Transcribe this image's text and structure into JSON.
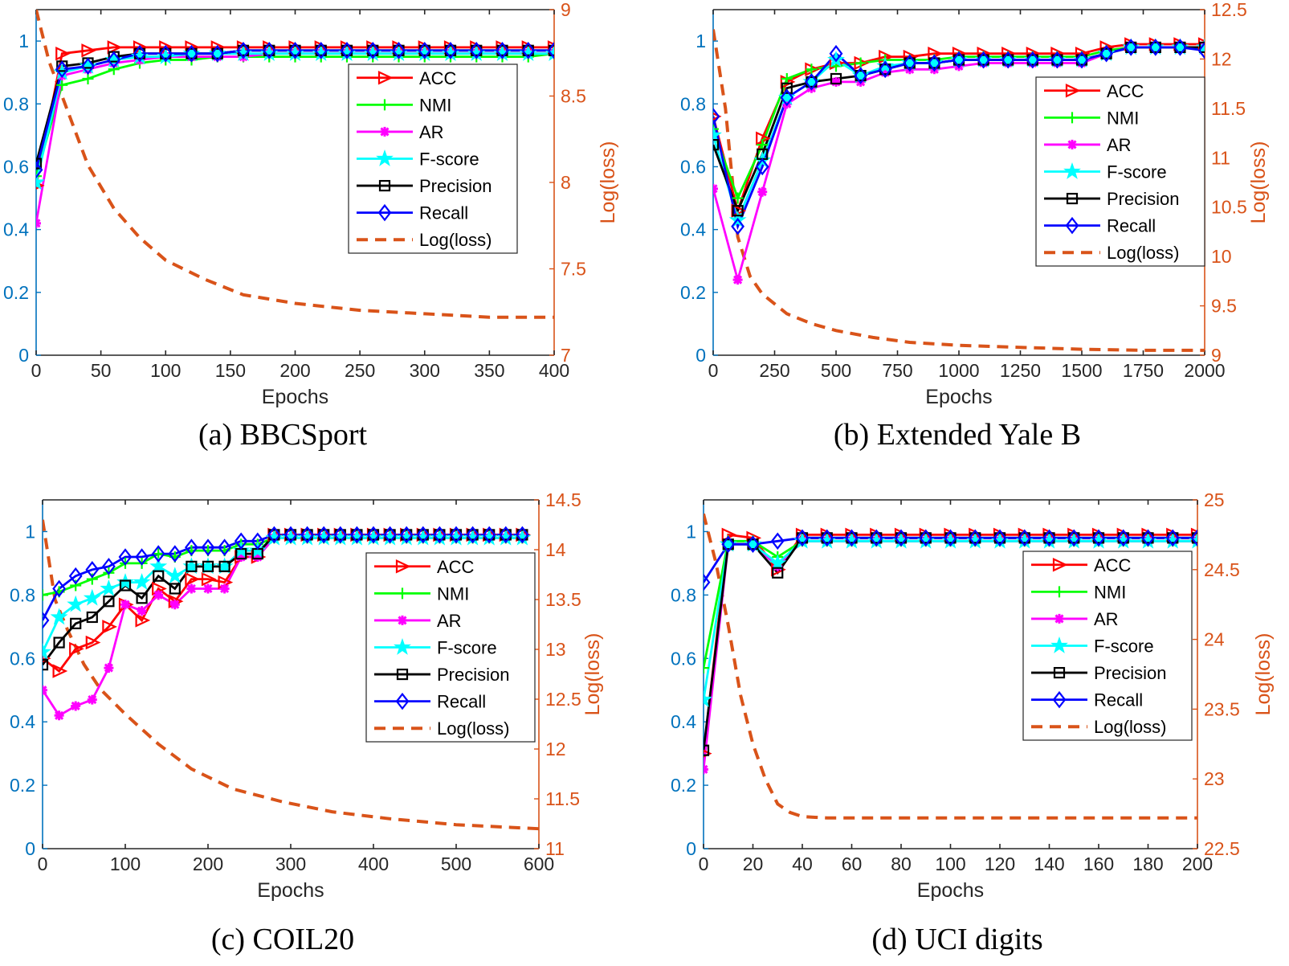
{
  "legend_labels": [
    "ACC",
    "NMI",
    "AR",
    "F-score",
    "Precision",
    "Recall",
    "Log(loss)"
  ],
  "colors": {
    "ACC": "#FF0000",
    "NMI": "#00FF00",
    "AR": "#FF00FF",
    "F-score": "#00FFFF",
    "Precision": "#000000",
    "Recall": "#0000FF",
    "loss": "#D95319",
    "left_axis": "#0072BD"
  },
  "chart_data": [
    {
      "type": "line",
      "caption": "(a) BBCSport",
      "xlabel": "Epochs",
      "ylabel_right": "Log(loss)",
      "xlim": [
        0,
        400
      ],
      "x_ticks": [
        "0",
        "50",
        "100",
        "150",
        "200",
        "250",
        "300",
        "350",
        "400"
      ],
      "ylim_left": [
        0,
        1.1
      ],
      "y_ticks_left": [
        "0",
        "0.2",
        "0.4",
        "0.6",
        "0.8",
        "1"
      ],
      "ylim_right": [
        7,
        9
      ],
      "y_ticks_right": [
        "7",
        "7.5",
        "8",
        "8.5",
        "9"
      ],
      "x": [
        0,
        20,
        40,
        60,
        80,
        100,
        120,
        140,
        160,
        180,
        200,
        220,
        240,
        260,
        280,
        300,
        320,
        340,
        360,
        380,
        400
      ],
      "series": [
        {
          "name": "ACC",
          "values": [
            0.54,
            0.96,
            0.97,
            0.98,
            0.98,
            0.98,
            0.98,
            0.98,
            0.98,
            0.98,
            0.98,
            0.98,
            0.98,
            0.98,
            0.98,
            0.98,
            0.98,
            0.98,
            0.98,
            0.98,
            0.98
          ]
        },
        {
          "name": "NMI",
          "values": [
            0.57,
            0.86,
            0.88,
            0.91,
            0.93,
            0.94,
            0.94,
            0.95,
            0.95,
            0.95,
            0.95,
            0.95,
            0.95,
            0.95,
            0.95,
            0.95,
            0.95,
            0.95,
            0.95,
            0.95,
            0.96
          ]
        },
        {
          "name": "AR",
          "values": [
            0.42,
            0.89,
            0.91,
            0.93,
            0.94,
            0.95,
            0.95,
            0.95,
            0.95,
            0.96,
            0.96,
            0.96,
            0.96,
            0.96,
            0.96,
            0.96,
            0.96,
            0.96,
            0.96,
            0.96,
            0.96
          ]
        },
        {
          "name": "F-score",
          "values": [
            0.55,
            0.9,
            0.92,
            0.94,
            0.95,
            0.95,
            0.96,
            0.96,
            0.96,
            0.96,
            0.96,
            0.96,
            0.96,
            0.96,
            0.96,
            0.96,
            0.96,
            0.96,
            0.96,
            0.96,
            0.96
          ]
        },
        {
          "name": "Precision",
          "values": [
            0.61,
            0.92,
            0.93,
            0.95,
            0.96,
            0.96,
            0.96,
            0.96,
            0.97,
            0.97,
            0.97,
            0.97,
            0.97,
            0.97,
            0.97,
            0.97,
            0.97,
            0.97,
            0.97,
            0.97,
            0.97
          ]
        },
        {
          "name": "Recall",
          "values": [
            0.59,
            0.91,
            0.92,
            0.94,
            0.96,
            0.96,
            0.96,
            0.96,
            0.97,
            0.97,
            0.97,
            0.97,
            0.97,
            0.97,
            0.97,
            0.97,
            0.97,
            0.97,
            0.97,
            0.97,
            0.97
          ]
        }
      ],
      "loss": {
        "x": [
          0,
          10,
          20,
          40,
          60,
          80,
          100,
          130,
          160,
          200,
          250,
          300,
          350,
          400
        ],
        "values": [
          9.0,
          8.7,
          8.5,
          8.1,
          7.85,
          7.68,
          7.55,
          7.44,
          7.35,
          7.3,
          7.26,
          7.24,
          7.22,
          7.22
        ]
      },
      "legend_location": "upper-right"
    },
    {
      "type": "line",
      "caption": "(b) Extended Yale B",
      "xlabel": "Epochs",
      "ylabel_right": "Log(loss)",
      "xlim": [
        0,
        2000
      ],
      "x_ticks": [
        "0",
        "250",
        "500",
        "750",
        "1000",
        "1250",
        "1500",
        "1750",
        "2000"
      ],
      "ylim_left": [
        0,
        1.1
      ],
      "y_ticks_left": [
        "0",
        "0.2",
        "0.4",
        "0.6",
        "0.8",
        "1"
      ],
      "ylim_right": [
        9,
        12.5
      ],
      "y_ticks_right": [
        "9",
        "9.5",
        "10",
        "10.5",
        "11",
        "11.5",
        "12",
        "12.5"
      ],
      "x": [
        0,
        100,
        200,
        300,
        400,
        500,
        600,
        700,
        800,
        900,
        1000,
        1100,
        1200,
        1300,
        1400,
        1500,
        1600,
        1700,
        1800,
        1900,
        2000
      ],
      "series": [
        {
          "name": "ACC",
          "values": [
            0.76,
            0.46,
            0.69,
            0.87,
            0.91,
            0.93,
            0.93,
            0.95,
            0.95,
            0.96,
            0.96,
            0.96,
            0.96,
            0.96,
            0.96,
            0.96,
            0.98,
            0.99,
            0.99,
            0.99,
            0.99
          ]
        },
        {
          "name": "NMI",
          "values": [
            0.72,
            0.5,
            0.67,
            0.88,
            0.91,
            0.92,
            0.93,
            0.94,
            0.94,
            0.94,
            0.95,
            0.95,
            0.95,
            0.95,
            0.95,
            0.95,
            0.97,
            0.98,
            0.98,
            0.98,
            0.98
          ]
        },
        {
          "name": "AR",
          "values": [
            0.53,
            0.24,
            0.52,
            0.8,
            0.85,
            0.87,
            0.87,
            0.9,
            0.91,
            0.91,
            0.92,
            0.93,
            0.93,
            0.93,
            0.93,
            0.93,
            0.96,
            0.98,
            0.98,
            0.98,
            0.98
          ]
        },
        {
          "name": "F-score",
          "values": [
            0.7,
            0.43,
            0.62,
            0.82,
            0.87,
            0.94,
            0.89,
            0.92,
            0.93,
            0.93,
            0.94,
            0.94,
            0.94,
            0.94,
            0.94,
            0.94,
            0.96,
            0.98,
            0.98,
            0.98,
            0.98
          ]
        },
        {
          "name": "Precision",
          "values": [
            0.67,
            0.46,
            0.64,
            0.85,
            0.87,
            0.88,
            0.89,
            0.91,
            0.93,
            0.93,
            0.94,
            0.94,
            0.94,
            0.94,
            0.94,
            0.94,
            0.96,
            0.98,
            0.98,
            0.98,
            0.98
          ]
        },
        {
          "name": "Recall",
          "values": [
            0.76,
            0.41,
            0.6,
            0.82,
            0.87,
            0.96,
            0.89,
            0.91,
            0.93,
            0.93,
            0.94,
            0.94,
            0.94,
            0.94,
            0.94,
            0.94,
            0.96,
            0.98,
            0.98,
            0.98,
            0.97
          ]
        }
      ],
      "loss": {
        "x": [
          0,
          50,
          100,
          150,
          200,
          300,
          400,
          500,
          650,
          800,
          1000,
          1250,
          1500,
          1750,
          2000
        ],
        "values": [
          12.3,
          11.5,
          10.2,
          9.8,
          9.62,
          9.42,
          9.32,
          9.25,
          9.18,
          9.13,
          9.1,
          9.08,
          9.06,
          9.05,
          9.05
        ]
      },
      "legend_location": "upper-right"
    },
    {
      "type": "line",
      "caption": "(c) COIL20",
      "xlabel": "Epochs",
      "ylabel_right": "Log(loss)",
      "xlim": [
        0,
        600
      ],
      "x_ticks": [
        "0",
        "100",
        "200",
        "300",
        "400",
        "500",
        "600"
      ],
      "ylim_left": [
        0,
        1.1
      ],
      "y_ticks_left": [
        "0",
        "0.2",
        "0.4",
        "0.6",
        "0.8",
        "1"
      ],
      "ylim_right": [
        11,
        14.5
      ],
      "y_ticks_right": [
        "11",
        "11.5",
        "12",
        "12.5",
        "13",
        "13.5",
        "14",
        "14.5"
      ],
      "x": [
        0,
        20,
        40,
        60,
        80,
        100,
        120,
        140,
        160,
        180,
        200,
        220,
        240,
        260,
        280,
        300,
        320,
        340,
        360,
        380,
        400,
        420,
        440,
        460,
        480,
        500,
        520,
        540,
        560,
        580
      ],
      "series": [
        {
          "name": "ACC",
          "values": [
            0.6,
            0.56,
            0.63,
            0.65,
            0.7,
            0.77,
            0.72,
            0.82,
            0.78,
            0.85,
            0.85,
            0.84,
            0.92,
            0.92,
            0.99,
            0.99,
            0.99,
            0.99,
            0.99,
            0.99,
            0.99,
            0.99,
            0.99,
            0.99,
            0.99,
            0.99,
            0.99,
            0.99,
            0.99,
            0.99
          ]
        },
        {
          "name": "NMI",
          "values": [
            0.8,
            0.81,
            0.83,
            0.85,
            0.87,
            0.9,
            0.9,
            0.93,
            0.92,
            0.94,
            0.94,
            0.94,
            0.96,
            0.96,
            0.98,
            0.98,
            0.98,
            0.98,
            0.98,
            0.98,
            0.98,
            0.98,
            0.98,
            0.98,
            0.98,
            0.98,
            0.98,
            0.98,
            0.98,
            0.98
          ]
        },
        {
          "name": "AR",
          "values": [
            0.5,
            0.42,
            0.45,
            0.47,
            0.57,
            0.77,
            0.75,
            0.8,
            0.77,
            0.82,
            0.82,
            0.82,
            0.92,
            0.92,
            0.98,
            0.98,
            0.98,
            0.98,
            0.98,
            0.98,
            0.98,
            0.98,
            0.98,
            0.98,
            0.98,
            0.98,
            0.98,
            0.98,
            0.98,
            0.98
          ]
        },
        {
          "name": "F-score",
          "values": [
            0.62,
            0.73,
            0.77,
            0.79,
            0.82,
            0.84,
            0.84,
            0.89,
            0.86,
            0.89,
            0.89,
            0.89,
            0.94,
            0.94,
            0.98,
            0.98,
            0.98,
            0.98,
            0.98,
            0.98,
            0.98,
            0.98,
            0.98,
            0.98,
            0.98,
            0.98,
            0.98,
            0.98,
            0.98,
            0.98
          ]
        },
        {
          "name": "Precision",
          "values": [
            0.58,
            0.65,
            0.71,
            0.73,
            0.78,
            0.83,
            0.79,
            0.86,
            0.82,
            0.89,
            0.89,
            0.89,
            0.93,
            0.93,
            0.99,
            0.99,
            0.99,
            0.99,
            0.99,
            0.99,
            0.99,
            0.99,
            0.99,
            0.99,
            0.99,
            0.99,
            0.99,
            0.99,
            0.99,
            0.99
          ]
        },
        {
          "name": "Recall",
          "values": [
            0.72,
            0.82,
            0.86,
            0.88,
            0.89,
            0.92,
            0.92,
            0.93,
            0.93,
            0.95,
            0.95,
            0.95,
            0.97,
            0.97,
            0.99,
            0.99,
            0.99,
            0.99,
            0.99,
            0.99,
            0.99,
            0.99,
            0.99,
            0.99,
            0.99,
            0.99,
            0.99,
            0.99,
            0.99,
            0.99
          ]
        }
      ],
      "loss": {
        "x": [
          0,
          15,
          30,
          50,
          70,
          100,
          140,
          180,
          230,
          290,
          350,
          420,
          500,
          600
        ],
        "values": [
          14.3,
          13.5,
          13.2,
          12.85,
          12.6,
          12.35,
          12.05,
          11.8,
          11.6,
          11.47,
          11.37,
          11.3,
          11.24,
          11.2
        ]
      },
      "legend_location": "upper-right"
    },
    {
      "type": "line",
      "caption": "(d) UCI digits",
      "xlabel": "Epochs",
      "ylabel_right": "Log(loss)",
      "xlim": [
        0,
        200
      ],
      "x_ticks": [
        "0",
        "20",
        "40",
        "60",
        "80",
        "100",
        "120",
        "140",
        "160",
        "180",
        "200"
      ],
      "ylim_left": [
        0,
        1.1
      ],
      "y_ticks_left": [
        "0",
        "0.2",
        "0.4",
        "0.6",
        "0.8",
        "1"
      ],
      "ylim_right": [
        22.5,
        25
      ],
      "y_ticks_right": [
        "22.5",
        "23",
        "23.5",
        "24",
        "24.5",
        "25"
      ],
      "x": [
        0,
        10,
        20,
        30,
        40,
        50,
        60,
        70,
        80,
        90,
        100,
        110,
        120,
        130,
        140,
        150,
        160,
        170,
        180,
        190,
        200
      ],
      "series": [
        {
          "name": "ACC",
          "values": [
            0.3,
            0.99,
            0.98,
            0.88,
            0.99,
            0.99,
            0.99,
            0.99,
            0.99,
            0.99,
            0.99,
            0.99,
            0.99,
            0.99,
            0.99,
            0.99,
            0.99,
            0.99,
            0.99,
            0.99,
            0.99
          ]
        },
        {
          "name": "NMI",
          "values": [
            0.57,
            0.97,
            0.97,
            0.92,
            0.97,
            0.97,
            0.97,
            0.97,
            0.97,
            0.97,
            0.97,
            0.97,
            0.97,
            0.97,
            0.97,
            0.97,
            0.97,
            0.97,
            0.97,
            0.97,
            0.97
          ]
        },
        {
          "name": "AR",
          "values": [
            0.25,
            0.96,
            0.96,
            0.89,
            0.97,
            0.97,
            0.97,
            0.97,
            0.97,
            0.97,
            0.97,
            0.97,
            0.97,
            0.97,
            0.97,
            0.97,
            0.97,
            0.97,
            0.97,
            0.97,
            0.97
          ]
        },
        {
          "name": "F-score",
          "values": [
            0.47,
            0.96,
            0.96,
            0.9,
            0.97,
            0.97,
            0.97,
            0.97,
            0.97,
            0.97,
            0.97,
            0.97,
            0.97,
            0.97,
            0.97,
            0.97,
            0.97,
            0.97,
            0.97,
            0.97,
            0.97
          ]
        },
        {
          "name": "Precision",
          "values": [
            0.31,
            0.96,
            0.96,
            0.87,
            0.98,
            0.98,
            0.98,
            0.98,
            0.98,
            0.98,
            0.98,
            0.98,
            0.98,
            0.98,
            0.98,
            0.98,
            0.98,
            0.98,
            0.98,
            0.98,
            0.98
          ]
        },
        {
          "name": "Recall",
          "values": [
            0.84,
            0.96,
            0.96,
            0.97,
            0.98,
            0.98,
            0.98,
            0.98,
            0.98,
            0.98,
            0.98,
            0.98,
            0.98,
            0.98,
            0.98,
            0.98,
            0.98,
            0.98,
            0.98,
            0.98,
            0.98
          ]
        }
      ],
      "loss": {
        "x": [
          0,
          5,
          10,
          15,
          20,
          25,
          30,
          35,
          40,
          50,
          60,
          100,
          150,
          200
        ],
        "values": [
          24.9,
          24.55,
          24.1,
          23.6,
          23.25,
          23.0,
          22.82,
          22.76,
          22.73,
          22.72,
          22.72,
          22.72,
          22.72,
          22.72
        ]
      },
      "legend_location": "upper-right"
    }
  ]
}
